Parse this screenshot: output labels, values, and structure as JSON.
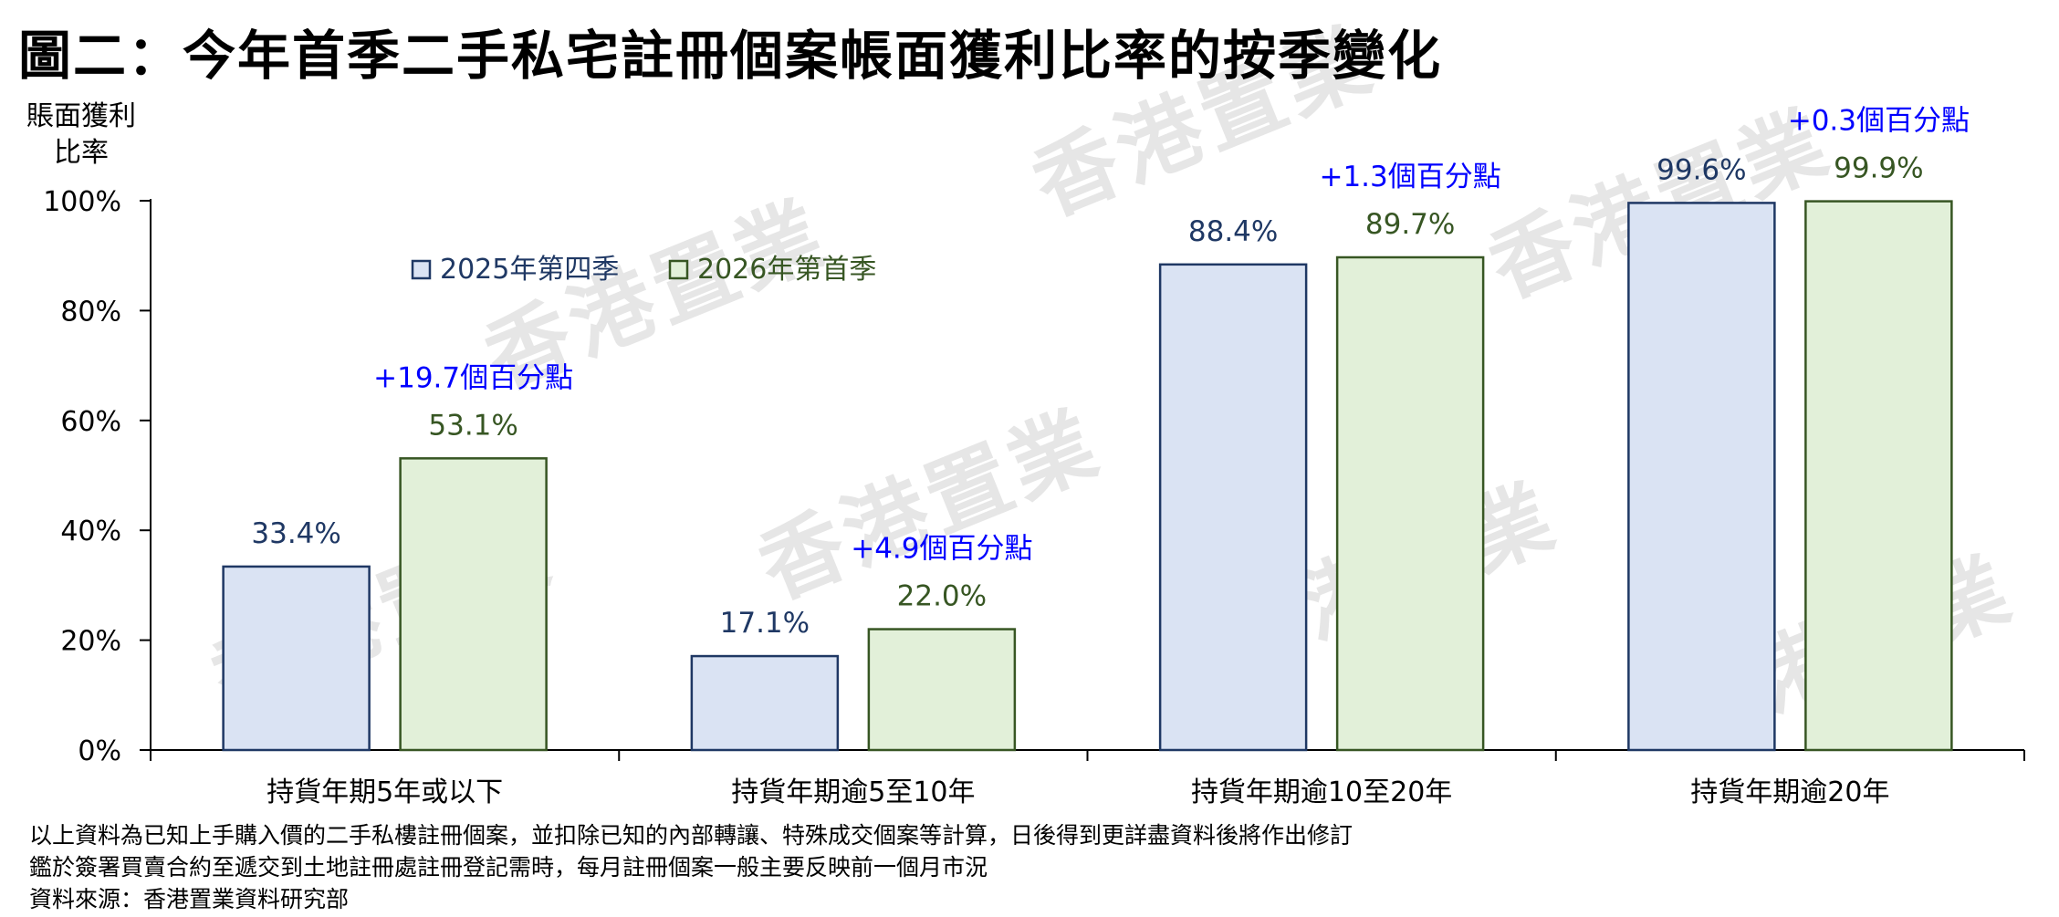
{
  "title": "圖二：今年首季二手私宅註冊個案帳面獲利比率的按季變化",
  "watermark_text": "香港置業",
  "chart_data": {
    "type": "bar",
    "title": "圖二：今年首季二手私宅註冊個案帳面獲利比率的按季變化",
    "ylabel_lines": [
      "賬面獲利",
      "比率"
    ],
    "xlabel": "",
    "ylim": [
      0,
      100
    ],
    "yticks": [
      "0%",
      "20%",
      "40%",
      "60%",
      "80%",
      "100%"
    ],
    "categories": [
      "持貨年期5年或以下",
      "持貨年期逾5至10年",
      "持貨年期逾10至20年",
      "持貨年期逾20年"
    ],
    "series": [
      {
        "name": "2025年第四季",
        "values": [
          33.4,
          17.1,
          88.4,
          99.6
        ],
        "labels": [
          "33.4%",
          "17.1%",
          "88.4%",
          "99.6%"
        ]
      },
      {
        "name": "2026年第首季",
        "values": [
          53.1,
          22.0,
          89.7,
          99.9
        ],
        "labels": [
          "53.1%",
          "22.0%",
          "89.7%",
          "99.9%"
        ]
      }
    ],
    "annotations": [
      "+19.7個百分點",
      "+4.9個百分點",
      "+1.3個百分點",
      "+0.3個百分點"
    ],
    "legend_placement": "top-left",
    "grid": false
  },
  "colors": {
    "series1_fill": "#dae3f3",
    "series1_stroke": "#1f3864",
    "series1_label": "#1f3864",
    "series2_fill": "#e2f0d9",
    "series2_stroke": "#375623",
    "series2_label": "#375623",
    "annotation": "#0000ff"
  },
  "notes": [
    "以上資料為已知上手購入價的二手私樓註冊個案，並扣除已知的內部轉讓、特殊成交個案等計算，日後得到更詳盡資料後將作出修訂",
    "鑑於簽署買賣合約至遞交到土地註冊處註冊登記需時，每月註冊個案一般主要反映前一個月市況",
    "資料來源：香港置業資料研究部"
  ]
}
